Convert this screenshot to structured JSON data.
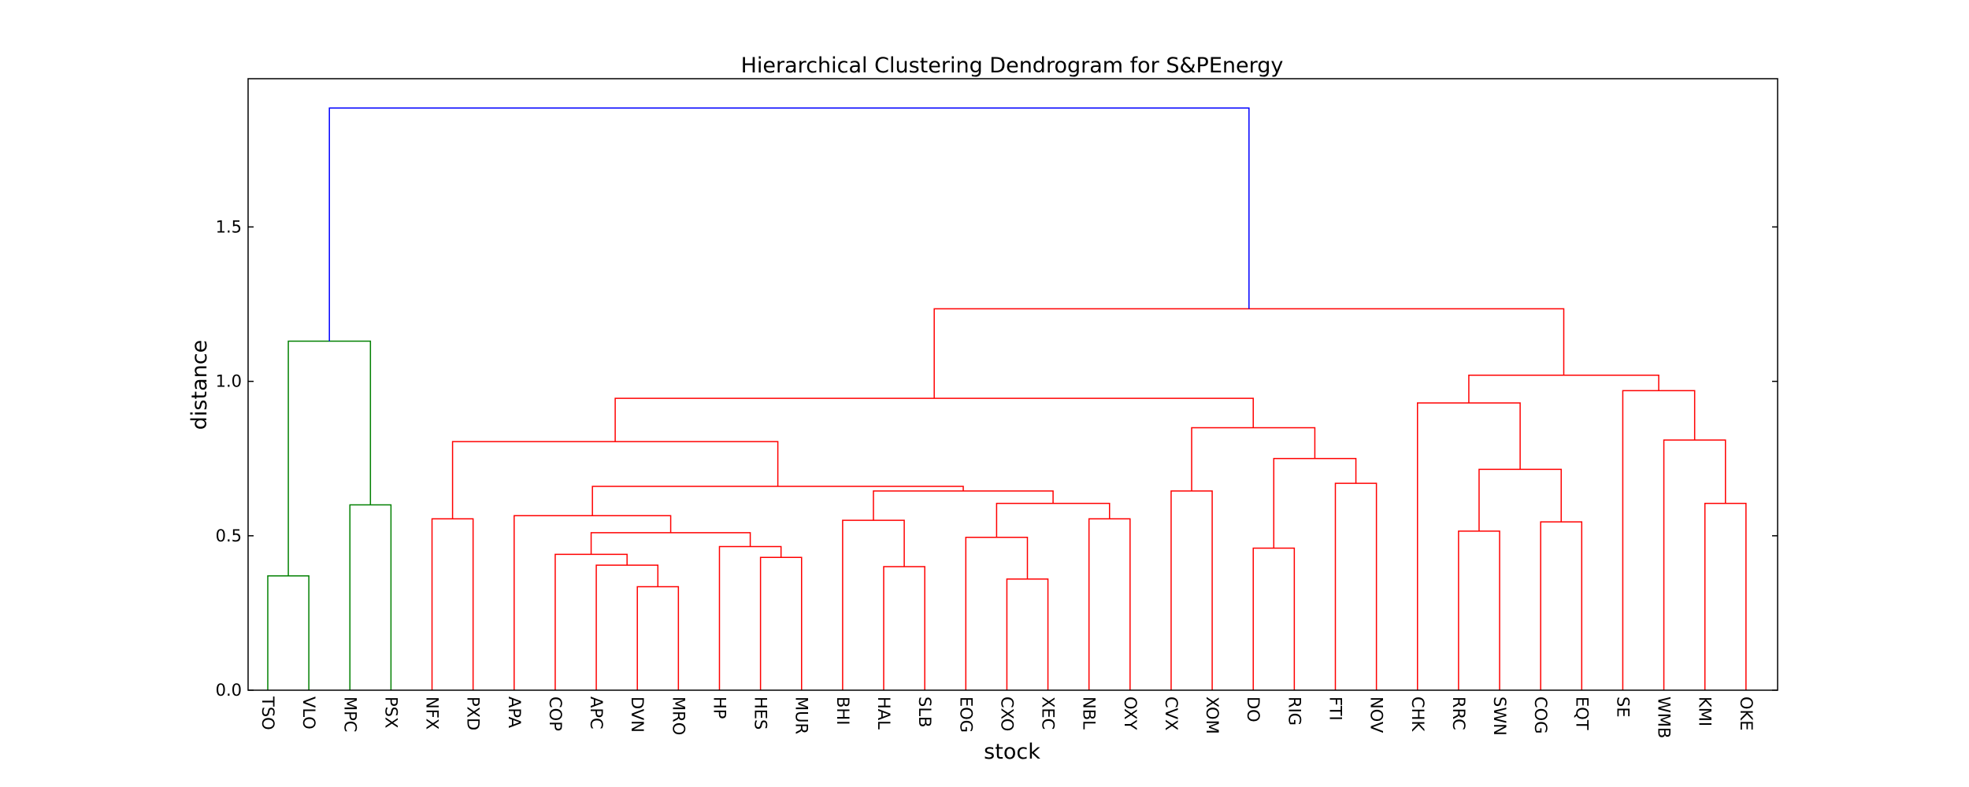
{
  "chart_data": {
    "type": "dendrogram",
    "title": "Hierarchical Clustering Dendrogram for S&PEnergy",
    "xlabel": "stock",
    "ylabel": "distance",
    "ylim": [
      0,
      1.98
    ],
    "yticks": [
      0.0,
      0.5,
      1.0,
      1.5
    ],
    "grid": false,
    "colors": {
      "green": "#008000",
      "red": "#ff0000",
      "blue": "#0000ff"
    },
    "leaves": [
      "TSO",
      "VLO",
      "MPC",
      "PSX",
      "NFX",
      "PXD",
      "APA",
      "COP",
      "APC",
      "DVN",
      "MRO",
      "HP",
      "HES",
      "MUR",
      "BHI",
      "HAL",
      "SLB",
      "EOG",
      "CXO",
      "XEC",
      "NBL",
      "OXY",
      "CVX",
      "XOM",
      "DO",
      "RIG",
      "FTI",
      "NOV",
      "CHK",
      "RRC",
      "SWN",
      "COG",
      "EQT",
      "SE",
      "WMB",
      "KMI",
      "OKE"
    ],
    "merges": [
      {
        "left": "TSO",
        "right": "VLO",
        "height": 0.37,
        "color": "green"
      },
      {
        "left": "MPC",
        "right": "PSX",
        "height": 0.6,
        "color": "green"
      },
      {
        "left": 0,
        "right": 1,
        "height": 1.13,
        "color": "green"
      },
      {
        "left": "NFX",
        "right": "PXD",
        "height": 0.555,
        "color": "red"
      },
      {
        "left": "DVN",
        "right": "MRO",
        "height": 0.335,
        "color": "red"
      },
      {
        "left": "APC",
        "right": 4,
        "height": 0.405,
        "color": "red"
      },
      {
        "left": "COP",
        "right": 5,
        "height": 0.44,
        "color": "red"
      },
      {
        "left": "HES",
        "right": "MUR",
        "height": 0.43,
        "color": "red"
      },
      {
        "left": "HP",
        "right": 7,
        "height": 0.465,
        "color": "red"
      },
      {
        "left": 6,
        "right": 8,
        "height": 0.51,
        "color": "red"
      },
      {
        "left": "APA",
        "right": 9,
        "height": 0.565,
        "color": "red"
      },
      {
        "left": "HAL",
        "right": "SLB",
        "height": 0.4,
        "color": "red"
      },
      {
        "left": "BHI",
        "right": 11,
        "height": 0.55,
        "color": "red"
      },
      {
        "left": "CXO",
        "right": "XEC",
        "height": 0.36,
        "color": "red"
      },
      {
        "left": "EOG",
        "right": 13,
        "height": 0.495,
        "color": "red"
      },
      {
        "left": "NBL",
        "right": "OXY",
        "height": 0.555,
        "color": "red"
      },
      {
        "left": 14,
        "right": 15,
        "height": 0.605,
        "color": "red"
      },
      {
        "left": 12,
        "right": 16,
        "height": 0.645,
        "color": "red"
      },
      {
        "left": 10,
        "right": 17,
        "height": 0.66,
        "color": "red"
      },
      {
        "left": 3,
        "right": 18,
        "height": 0.805,
        "color": "red"
      },
      {
        "left": "CVX",
        "right": "XOM",
        "height": 0.645,
        "color": "red"
      },
      {
        "left": "DO",
        "right": "RIG",
        "height": 0.46,
        "color": "red"
      },
      {
        "left": "FTI",
        "right": "NOV",
        "height": 0.67,
        "color": "red"
      },
      {
        "left": 21,
        "right": 22,
        "height": 0.75,
        "color": "red"
      },
      {
        "left": 20,
        "right": 23,
        "height": 0.85,
        "color": "red"
      },
      {
        "left": 19,
        "right": 24,
        "height": 0.945,
        "color": "red"
      },
      {
        "left": "RRC",
        "right": "SWN",
        "height": 0.515,
        "color": "red"
      },
      {
        "left": "COG",
        "right": "EQT",
        "height": 0.545,
        "color": "red"
      },
      {
        "left": 26,
        "right": 27,
        "height": 0.715,
        "color": "red"
      },
      {
        "left": "CHK",
        "right": 28,
        "height": 0.93,
        "color": "red"
      },
      {
        "left": "KMI",
        "right": "OKE",
        "height": 0.605,
        "color": "red"
      },
      {
        "left": "WMB",
        "right": 30,
        "height": 0.81,
        "color": "red"
      },
      {
        "left": "SE",
        "right": 31,
        "height": 0.97,
        "color": "red"
      },
      {
        "left": 29,
        "right": 32,
        "height": 1.02,
        "color": "red"
      },
      {
        "left": 25,
        "right": 33,
        "height": 1.235,
        "color": "red"
      },
      {
        "left": 2,
        "right": 34,
        "height": 1.885,
        "color": "blue"
      }
    ]
  }
}
